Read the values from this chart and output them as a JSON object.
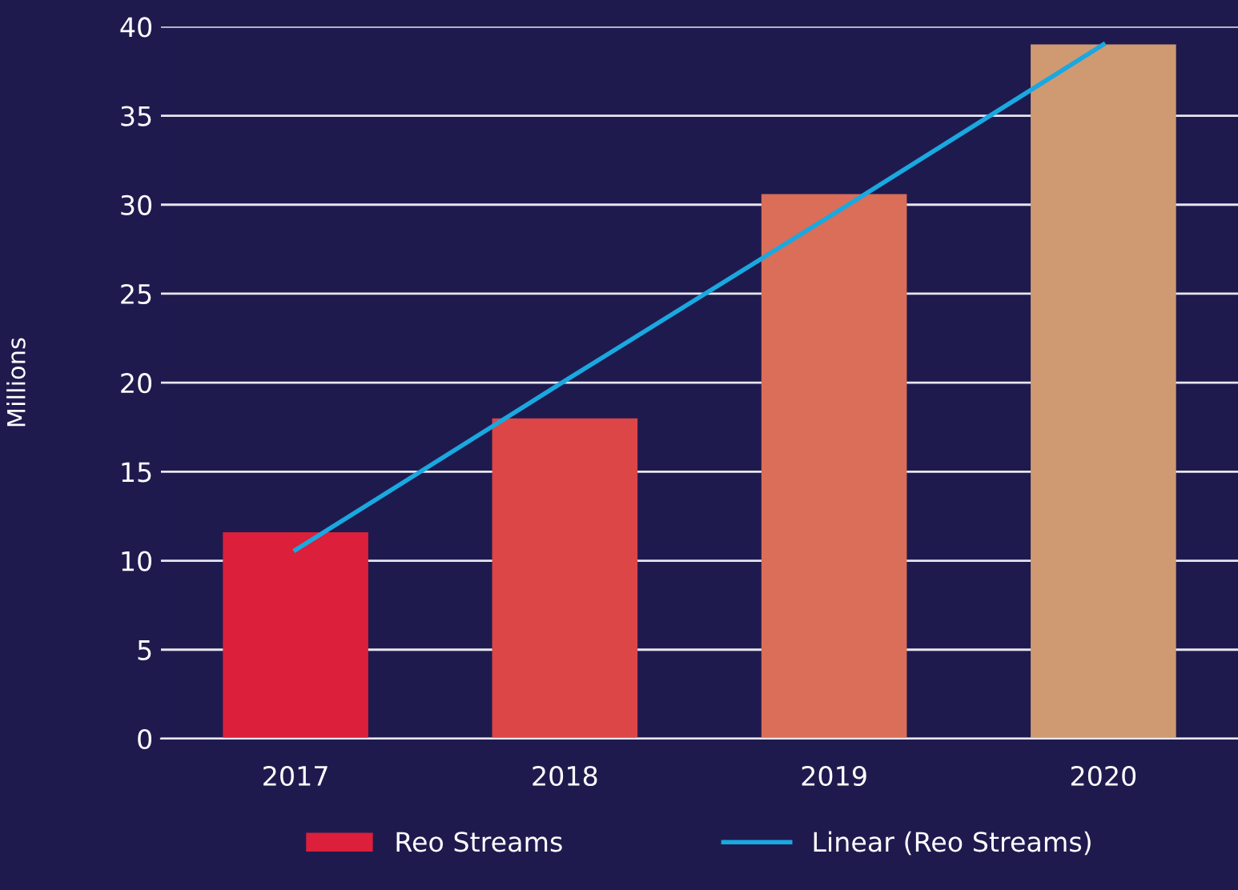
{
  "chart_data": {
    "type": "bar",
    "ylabel": "Millions",
    "categories": [
      "2017",
      "2018",
      "2019",
      "2020"
    ],
    "series": [
      {
        "name": "Reo Streams",
        "colors": [
          "#dc1f3a",
          "#dc4646",
          "#da6e58",
          "#cf9a72"
        ],
        "values": [
          11.6,
          18.0,
          30.6,
          39.0
        ]
      },
      {
        "name": "Linear (Reo Streams)",
        "type": "line",
        "color": "#1aa8e0",
        "values": [
          10.6,
          20.1,
          29.5,
          39.0
        ]
      }
    ],
    "ylim": [
      0,
      40
    ],
    "yticks": [
      0,
      5,
      10,
      15,
      20,
      25,
      30,
      35,
      40
    ],
    "grid": "y",
    "legend": "bottom",
    "marker": "none",
    "line_style": "solid"
  }
}
